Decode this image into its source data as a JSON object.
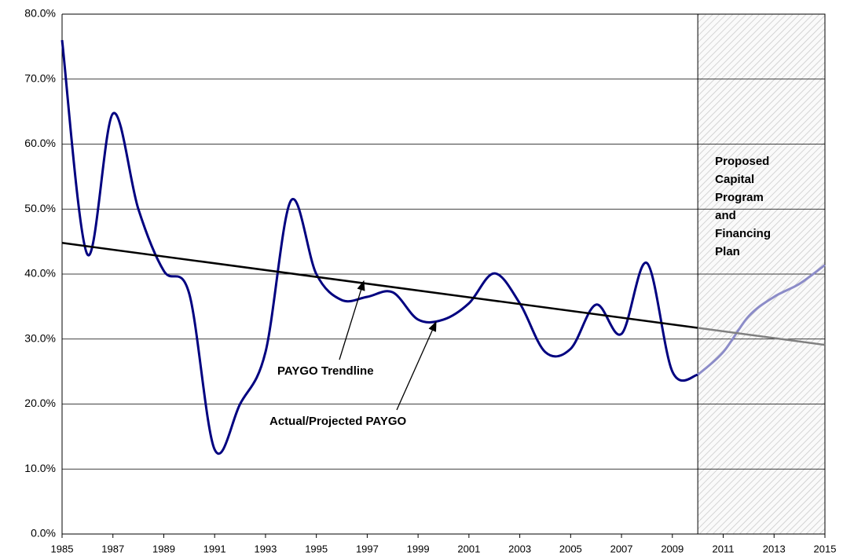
{
  "chart_data": {
    "type": "line",
    "x": [
      1985,
      1986,
      1987,
      1988,
      1989,
      1990,
      1991,
      1992,
      1993,
      1994,
      1995,
      1996,
      1997,
      1998,
      1999,
      2000,
      2001,
      2002,
      2003,
      2004,
      2005,
      2006,
      2007,
      2008,
      2009,
      2010,
      2011,
      2012,
      2013,
      2014,
      2015
    ],
    "series": [
      {
        "color": "#000080",
        "projected_color": "#8c8cc8",
        "values": [
          76,
          43,
          64.7,
          50,
          40.5,
          37,
          13,
          20,
          28,
          51.3,
          40,
          36,
          36.5,
          37.2,
          33,
          33,
          35.5,
          40.1,
          35.5,
          28,
          28.5,
          35.3,
          30.8,
          41.7,
          25,
          24.5,
          28,
          33.5,
          36.5,
          38.5,
          41.4
        ]
      },
      {
        "color": "#000000",
        "projected_color": "#808080",
        "x": [
          1985,
          2015
        ],
        "values": [
          44.8,
          29.1
        ]
      }
    ],
    "shaded_region": [
      2010,
      2015
    ],
    "xlim": [
      1985,
      2015
    ],
    "xticks": [
      1985,
      1987,
      1989,
      1991,
      1993,
      1995,
      1997,
      1999,
      2001,
      2003,
      2005,
      2007,
      2009,
      2011,
      2013,
      2015
    ],
    "ylim": [
      0,
      80
    ],
    "yticks": [
      {
        "value": 0,
        "label": "0.0%"
      },
      {
        "value": 10,
        "label": "10.0%"
      },
      {
        "value": 20,
        "label": "20.0%"
      },
      {
        "value": 30,
        "label": "30.0%"
      },
      {
        "value": 40,
        "label": "40.0%"
      },
      {
        "value": 50,
        "label": "50.0%"
      },
      {
        "value": 60,
        "label": "60.0%"
      },
      {
        "value": 70,
        "label": "70.0%"
      },
      {
        "value": 80,
        "label": "80.0%"
      }
    ],
    "grid": true,
    "annotations": [
      {
        "text": "PAYGO Trendline"
      },
      {
        "text": "Actual/Projected PAYGO"
      },
      {
        "lines": [
          "Proposed",
          "Capital",
          "Program",
          "and",
          "Financing",
          "Plan"
        ]
      }
    ]
  }
}
